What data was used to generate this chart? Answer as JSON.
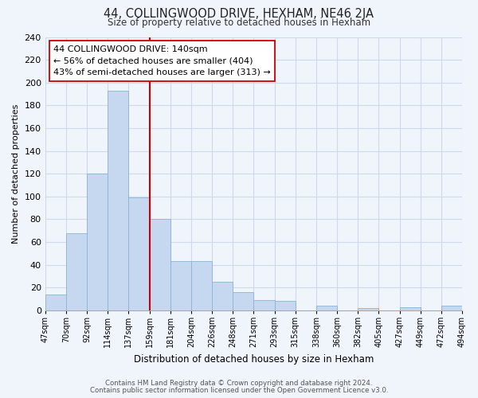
{
  "title": "44, COLLINGWOOD DRIVE, HEXHAM, NE46 2JA",
  "subtitle": "Size of property relative to detached houses in Hexham",
  "xlabel": "Distribution of detached houses by size in Hexham",
  "ylabel": "Number of detached properties",
  "bar_labels": [
    "47sqm",
    "70sqm",
    "92sqm",
    "114sqm",
    "137sqm",
    "159sqm",
    "181sqm",
    "204sqm",
    "226sqm",
    "248sqm",
    "271sqm",
    "293sqm",
    "315sqm",
    "338sqm",
    "360sqm",
    "382sqm",
    "405sqm",
    "427sqm",
    "449sqm",
    "472sqm",
    "494sqm"
  ],
  "bar_values": [
    14,
    68,
    120,
    193,
    99,
    80,
    43,
    43,
    25,
    16,
    9,
    8,
    0,
    4,
    0,
    2,
    0,
    3,
    0,
    4,
    0
  ],
  "bar_color": "#c5d8f0",
  "bar_edge_color": "#8ab4d4",
  "vline_x": 5,
  "vline_color": "#cc0000",
  "annotation_box_text": "44 COLLINGWOOD DRIVE: 140sqm\n← 56% of detached houses are smaller (404)\n43% of semi-detached houses are larger (313) →",
  "ylim": [
    0,
    240
  ],
  "yticks": [
    0,
    20,
    40,
    60,
    80,
    100,
    120,
    140,
    160,
    180,
    200,
    220,
    240
  ],
  "footer1": "Contains HM Land Registry data © Crown copyright and database right 2024.",
  "footer2": "Contains public sector information licensed under the Open Government Licence v3.0.",
  "bg_color": "#f0f4fb",
  "grid_color": "#d0d8ec"
}
